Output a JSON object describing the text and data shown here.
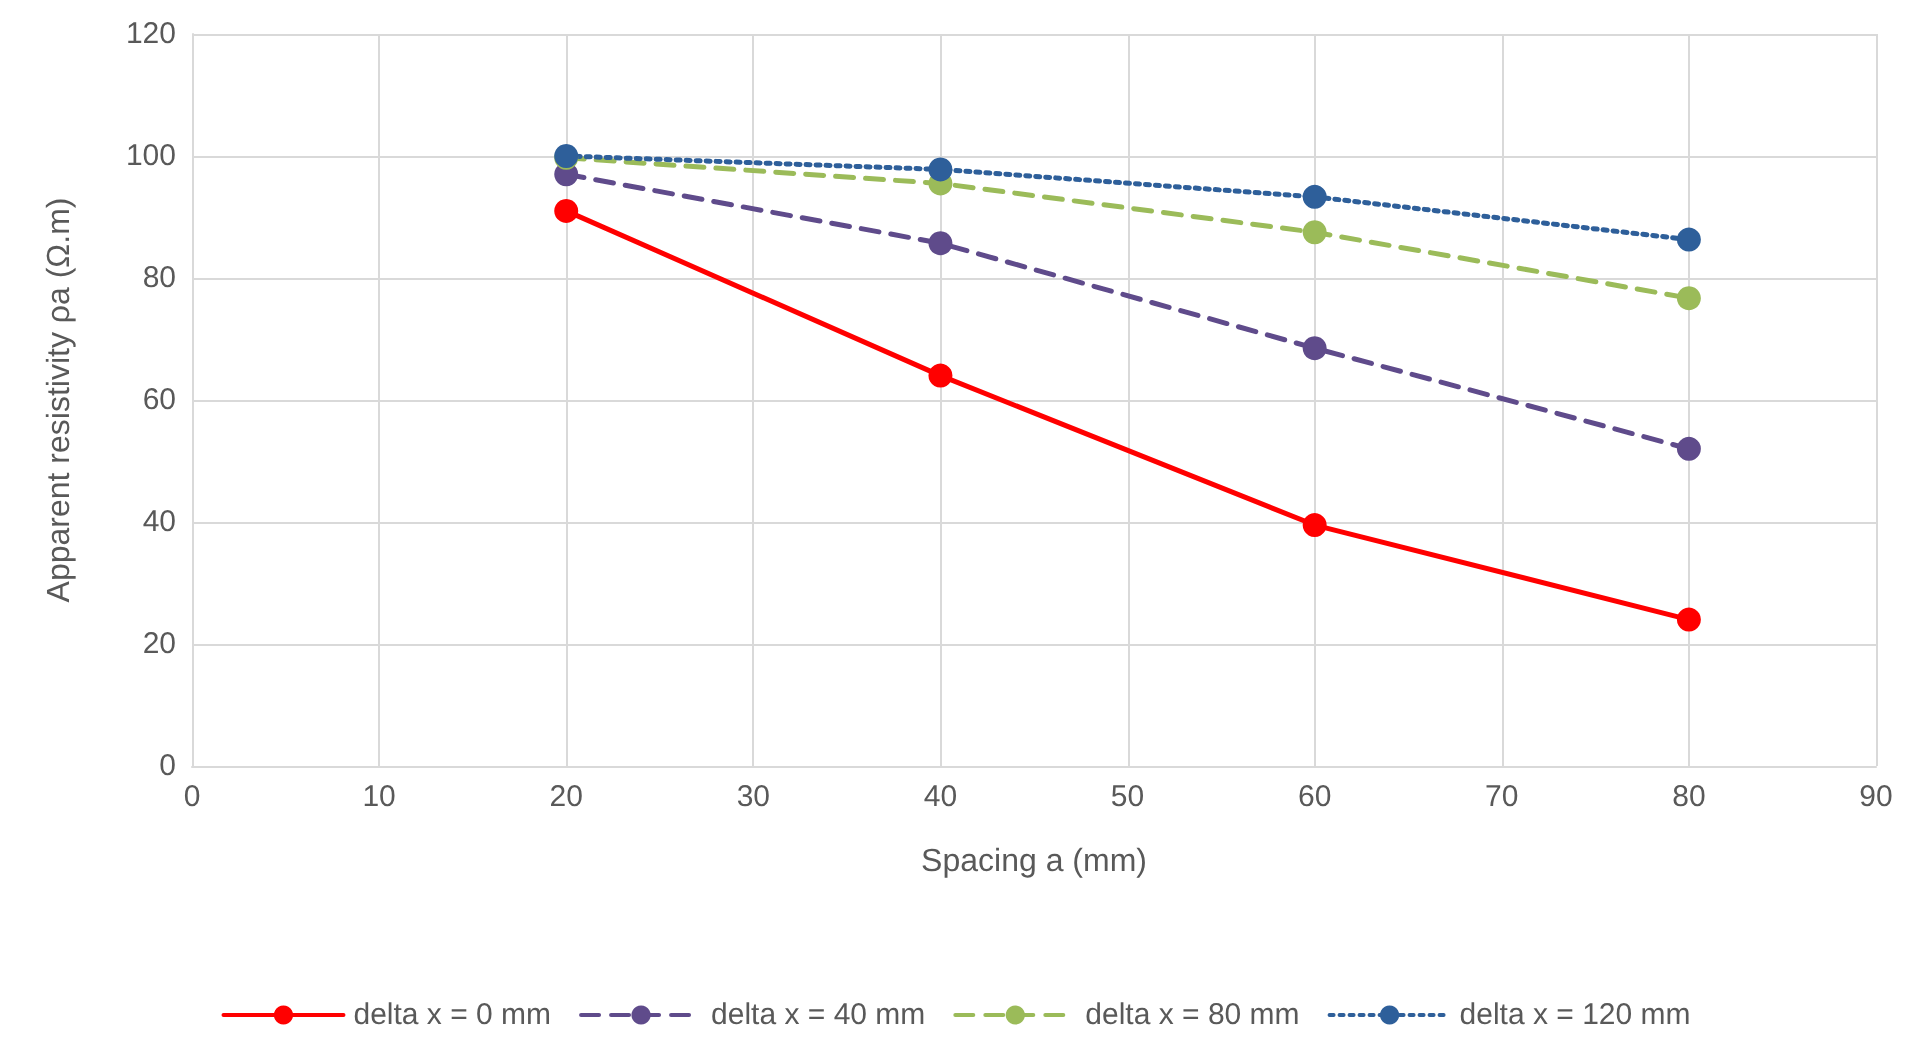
{
  "chart_data": {
    "type": "line",
    "xlabel": "Spacing a (mm)",
    "ylabel": "Apparent resistivity ρa (Ω.m)",
    "x": [
      20,
      40,
      60,
      80
    ],
    "series": [
      {
        "name": "delta x = 0 mm",
        "color": "#ff0000",
        "line_style": "solid",
        "values": [
          91,
          64,
          39.5,
          24
        ]
      },
      {
        "name": "delta x = 40 mm",
        "color": "#5f4b8b",
        "line_style": "dashed",
        "values": [
          97,
          85.7,
          68.5,
          52
        ]
      },
      {
        "name": "delta x = 80 mm",
        "color": "#9bbb59",
        "line_style": "dashed",
        "values": [
          99.7,
          95.5,
          87.5,
          76.7
        ]
      },
      {
        "name": "delta x = 120 mm",
        "color": "#2e5f9a",
        "line_style": "dotted",
        "values": [
          100,
          97.8,
          93.3,
          86.3
        ]
      }
    ],
    "xlim": [
      0,
      90
    ],
    "xticks": [
      0,
      10,
      20,
      30,
      40,
      50,
      60,
      70,
      80,
      90
    ],
    "ylim": [
      0,
      120
    ],
    "yticks": [
      0,
      20,
      40,
      60,
      80,
      100,
      120
    ],
    "grid": true,
    "legend": "bottom",
    "marker": "circle"
  }
}
